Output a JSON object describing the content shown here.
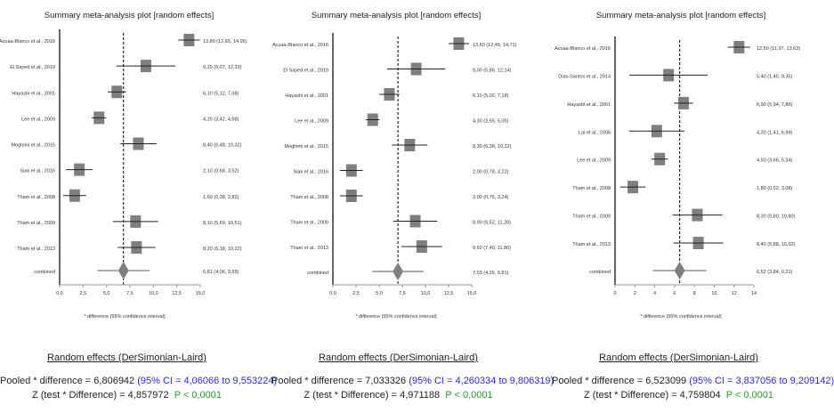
{
  "chart_data": [
    {
      "type": "forest",
      "title": "Summary meta-analysis plot [random effects]",
      "xlabel": "* difference (95% confidence interval)",
      "xlim": [
        0,
        15
      ],
      "xticks": [
        "0,0",
        "2,5",
        "5,0",
        "7,5",
        "10,0",
        "12,5",
        "15,0"
      ],
      "xtick_values": [
        0,
        2.5,
        5,
        7.5,
        10,
        12.5,
        15
      ],
      "studies": [
        {
          "name": "Acuaa-Blanco et al., 2016",
          "est": 13.8,
          "lo": 12.65,
          "hi": 14.95,
          "label": "13,80 (12,65, 14,95)"
        },
        {
          "name": "El Sayed et al., 2019",
          "est": 9.2,
          "lo": 6.07,
          "hi": 12.33,
          "label": "9,20 (6,07, 12,33)"
        },
        {
          "name": "Hayashi et al., 2001",
          "est": 6.1,
          "lo": 5.12,
          "hi": 7.08,
          "label": "6,10 (5,12, 7,08)"
        },
        {
          "name": "Lee et al., 2009",
          "est": 4.2,
          "lo": 3.42,
          "hi": 4.98,
          "label": "4,20 (3,42, 4,98)"
        },
        {
          "name": "Moghimi et al., 2015",
          "est": 8.4,
          "lo": 6.48,
          "hi": 10.32,
          "label": "8,40 (6,48, 10,32)"
        },
        {
          "name": "Siak et al., 2016",
          "est": 2.1,
          "lo": 0.68,
          "hi": 3.52,
          "label": "2,10 (0,68, 3,52)"
        },
        {
          "name": "Tham et al., 2008",
          "est": 1.6,
          "lo": 0.38,
          "hi": 2.82,
          "label": "1,60 (0,38, 2,82)"
        },
        {
          "name": "Tham et al., 2009",
          "est": 8.1,
          "lo": 5.69,
          "hi": 10.51,
          "label": "8,10 (5,69, 10,51)"
        },
        {
          "name": "Tham et al., 2013",
          "est": 8.2,
          "lo": 6.18,
          "hi": 10.22,
          "label": "8,20 (6,18, 10,22)"
        }
      ],
      "combined": {
        "name": "combined",
        "est": 6.81,
        "lo": 4.06,
        "hi": 9.55,
        "label": "6,81 (4,06, 9,55)"
      },
      "summary": {
        "heading": "Random effects (DerSimonian-Laird)",
        "pooled": "Pooled * difference = 6,806942",
        "ci": "(95% CI = 4,06066 to 9,553224)",
        "z": "Z (test * Difference) = 4,857972",
        "p": "P < 0,0001"
      }
    },
    {
      "type": "forest",
      "title": "Summary meta-analysis plot [random effects]",
      "xlabel": "* difference (95% confidence interval)",
      "xlim": [
        0,
        15
      ],
      "xticks": [
        "0,0",
        "2,5",
        "5,0",
        "7,5",
        "10,0",
        "12,5",
        "15,0"
      ],
      "xtick_values": [
        0,
        2.5,
        5,
        7.5,
        10,
        12.5,
        15
      ],
      "studies": [
        {
          "name": "Acuaa-Blanco et al., 2016",
          "est": 13.6,
          "lo": 12.49,
          "hi": 14.71,
          "label": "13,60 (12,49, 14,71)"
        },
        {
          "name": "El Sayed et al., 2019",
          "est": 9.0,
          "lo": 5.86,
          "hi": 12.14,
          "label": "9,00 (5,86, 12,14)"
        },
        {
          "name": "Hayashi et al., 2001",
          "est": 6.1,
          "lo": 5.02,
          "hi": 7.18,
          "label": "6,10 (5,02, 7,18)"
        },
        {
          "name": "Lee et al., 2009",
          "est": 4.3,
          "lo": 3.55,
          "hi": 5.05,
          "label": "4,30 (3,55, 5,05)"
        },
        {
          "name": "Moghimi et al., 2015",
          "est": 8.3,
          "lo": 6.38,
          "hi": 10.22,
          "label": "8,30 (6,38, 10,22)"
        },
        {
          "name": "Siak et al., 2016",
          "est": 2.0,
          "lo": 0.78,
          "hi": 3.22,
          "label": "2,00 (0,78, 3,22)"
        },
        {
          "name": "Tham et al., 2008",
          "est": 2.0,
          "lo": 0.76,
          "hi": 3.24,
          "label": "2,00 (0,76, 3,24)"
        },
        {
          "name": "Tham et al., 2009",
          "est": 8.9,
          "lo": 6.52,
          "hi": 11.28,
          "label": "8,90 (6,52, 11,28)"
        },
        {
          "name": "Tham et al., 2013",
          "est": 9.6,
          "lo": 7.4,
          "hi": 11.8,
          "label": "9,60 (7,40, 11,80)"
        }
      ],
      "combined": {
        "name": "combined",
        "est": 7.03,
        "lo": 4.26,
        "hi": 9.81,
        "label": "7,03 (4,26, 9,81)"
      },
      "summary": {
        "heading": "Random effects (DerSimonian-Laird)",
        "pooled": "Pooled * difference = 7,033326",
        "ci": "(95% CI = 4,260334 to 9,806319)",
        "z": "Z (test * Difference) = 4,971188",
        "p": "P < 0,0001"
      }
    },
    {
      "type": "forest",
      "title": "Summary meta-analysis plot [random effects]",
      "xlabel": "* difference (95% confidence interval)",
      "xlim": [
        0,
        14
      ],
      "xticks": [
        "0",
        "2",
        "4",
        "6",
        "8",
        "10",
        "12",
        "14"
      ],
      "xtick_values": [
        0,
        2,
        4,
        6,
        8,
        10,
        12,
        14
      ],
      "studies": [
        {
          "name": "Acuaa-Blanco et al., 2016",
          "est": 12.5,
          "lo": 11.37,
          "hi": 13.63,
          "label": "12,50 (11,37, 13,63)"
        },
        {
          "name": "Dias-Santos et al., 2014",
          "est": 5.4,
          "lo": 1.45,
          "hi": 9.35,
          "label": "5,40 (1,45, 9,35)"
        },
        {
          "name": "Hayashi et al., 2001",
          "est": 6.9,
          "lo": 5.94,
          "hi": 7.86,
          "label": "6,90 (5,94, 7,86)"
        },
        {
          "name": "Lai et al., 2006",
          "est": 4.2,
          "lo": 1.41,
          "hi": 6.99,
          "label": "4,20 (1,41, 6,99)"
        },
        {
          "name": "Lee et al., 2009",
          "est": 4.5,
          "lo": 3.66,
          "hi": 5.34,
          "label": "4,50 (3,66, 5,34)"
        },
        {
          "name": "Tham et al., 2008",
          "est": 1.8,
          "lo": 0.52,
          "hi": 3.08,
          "label": "1,80 (0,52, 3,08)"
        },
        {
          "name": "Tham et al., 2009",
          "est": 8.3,
          "lo": 5.8,
          "hi": 10.8,
          "label": "8,30 (5,80, 10,80)"
        },
        {
          "name": "Tham et al., 2013",
          "est": 8.4,
          "lo": 5.88,
          "hi": 10.92,
          "label": "8,40 (5,88, 10,92)"
        }
      ],
      "combined": {
        "name": "combined",
        "est": 6.52,
        "lo": 3.84,
        "hi": 9.21,
        "label": "6,52 (3,84, 9,21)"
      },
      "summary": {
        "heading": "Random effects (DerSimonian-Laird)",
        "pooled": "Pooled * difference = 6,523099",
        "ci": "(95% CI = 3,837056 to 9,209142)",
        "z": "Z (test * Difference) = 4,759804",
        "p": "P < 0,0001"
      }
    }
  ],
  "colors": {
    "marker": "#7f7f7f",
    "ci_text": "#2b2bd0",
    "p_text": "#2f9a2f"
  }
}
